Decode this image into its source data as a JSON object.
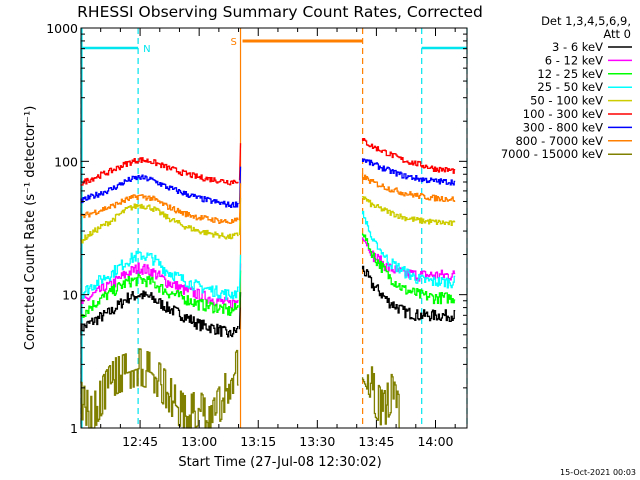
{
  "colors": {
    "background": "#ffffff",
    "axis": "#000000",
    "cyan_marker": "#00e5ee",
    "orange_marker": "#ff7f00"
  },
  "chart_data": {
    "type": "line",
    "title": "RHESSI Observing Summary Count Rates, Corrected",
    "xlabel": "Start Time (27-Jul-08 12:30:02)",
    "ylabel": "Corrected Count Rate (s⁻¹ detector⁻¹)",
    "ylog": true,
    "ylim": [
      1,
      1000
    ],
    "xlim_minutes": [
      0,
      98
    ],
    "x_ticks": [
      {
        "minute": 15,
        "label": "12:45"
      },
      {
        "minute": 30,
        "label": "13:00"
      },
      {
        "minute": 45,
        "label": "13:15"
      },
      {
        "minute": 60,
        "label": "13:30"
      },
      {
        "minute": 75,
        "label": "13:45"
      },
      {
        "minute": 90,
        "label": "14:00"
      }
    ],
    "y_ticks": [
      {
        "value": 1,
        "label": "1"
      },
      {
        "value": 10,
        "label": "10"
      },
      {
        "value": 100,
        "label": "100"
      },
      {
        "value": 1000,
        "label": "1000"
      }
    ],
    "legend": {
      "position": "right",
      "header_line1": "Det 1,3,4,5,6,9,",
      "header_line2": "Att 0",
      "entries": [
        {
          "label": "3 - 6 keV",
          "color": "#000000"
        },
        {
          "label": "6 - 12 keV",
          "color": "#ff00ff"
        },
        {
          "label": "12 - 25 keV",
          "color": "#00ff00"
        },
        {
          "label": "25 - 50 keV",
          "color": "#00ffff"
        },
        {
          "label": "50 - 100 keV",
          "color": "#cccc00"
        },
        {
          "label": "100 - 300 keV",
          "color": "#ff0000"
        },
        {
          "label": "300 - 800 keV",
          "color": "#0000ff"
        },
        {
          "label": "800 - 7000 keV",
          "color": "#ff7f00"
        },
        {
          "label": "7000 - 15000 keV",
          "color": "#808000"
        }
      ]
    },
    "annotations": {
      "night_label": "N",
      "saa_label": "S",
      "night_intervals_minutes": [
        [
          0,
          14.5
        ],
        [
          86.5,
          98
        ]
      ],
      "saa_interval_minutes": [
        40.5,
        71.5
      ],
      "data_gap_minutes": [
        40.5,
        71.5
      ]
    },
    "series": [
      {
        "color": "#000000",
        "before_gap": [
          [
            0,
            5.5
          ],
          [
            8,
            7.5
          ],
          [
            12,
            9.5
          ],
          [
            15,
            10
          ],
          [
            18,
            9.5
          ],
          [
            22,
            8
          ],
          [
            26,
            7
          ],
          [
            30,
            6
          ],
          [
            35,
            5.5
          ],
          [
            38,
            5
          ],
          [
            40,
            5.5
          ]
        ],
        "after_gap": [
          [
            71.5,
            16
          ],
          [
            74,
            12
          ],
          [
            78,
            9
          ],
          [
            82,
            7.5
          ],
          [
            86,
            7
          ],
          [
            90,
            7
          ],
          [
            95,
            7
          ]
        ]
      },
      {
        "color": "#ff00ff",
        "before_gap": [
          [
            0,
            8.5
          ],
          [
            8,
            12
          ],
          [
            12,
            14.5
          ],
          [
            15,
            16
          ],
          [
            18,
            15
          ],
          [
            22,
            12.5
          ],
          [
            26,
            11
          ],
          [
            30,
            10
          ],
          [
            35,
            9
          ],
          [
            38,
            8.5
          ],
          [
            40,
            9
          ]
        ],
        "after_gap": [
          [
            71.5,
            28
          ],
          [
            74,
            20
          ],
          [
            78,
            16
          ],
          [
            82,
            14.5
          ],
          [
            86,
            14
          ],
          [
            90,
            14
          ],
          [
            95,
            14
          ]
        ]
      },
      {
        "color": "#00ff00",
        "before_gap": [
          [
            0,
            7
          ],
          [
            8,
            10.5
          ],
          [
            12,
            12.5
          ],
          [
            15,
            13
          ],
          [
            18,
            12.5
          ],
          [
            22,
            10.5
          ],
          [
            26,
            9.5
          ],
          [
            30,
            8.5
          ],
          [
            35,
            8
          ],
          [
            38,
            7.5
          ],
          [
            40,
            8
          ]
        ],
        "after_gap": [
          [
            71.5,
            30
          ],
          [
            74,
            20
          ],
          [
            78,
            14
          ],
          [
            82,
            11
          ],
          [
            86,
            10
          ],
          [
            90,
            9.5
          ],
          [
            95,
            9.5
          ]
        ]
      },
      {
        "color": "#00ffff",
        "before_gap": [
          [
            0,
            10
          ],
          [
            8,
            14.5
          ],
          [
            12,
            18
          ],
          [
            15,
            20
          ],
          [
            18,
            19
          ],
          [
            22,
            15
          ],
          [
            26,
            13
          ],
          [
            30,
            11.5
          ],
          [
            35,
            10.5
          ],
          [
            38,
            10
          ],
          [
            40,
            10.5
          ]
        ],
        "after_gap": [
          [
            71.5,
            42
          ],
          [
            74,
            26
          ],
          [
            78,
            18
          ],
          [
            82,
            15
          ],
          [
            86,
            13
          ],
          [
            90,
            12.5
          ],
          [
            95,
            12.5
          ]
        ]
      },
      {
        "color": "#cccc00",
        "before_gap": [
          [
            0,
            25
          ],
          [
            8,
            36
          ],
          [
            12,
            44
          ],
          [
            15,
            47
          ],
          [
            18,
            45
          ],
          [
            22,
            38
          ],
          [
            26,
            33
          ],
          [
            30,
            30
          ],
          [
            35,
            28
          ],
          [
            38,
            27
          ],
          [
            40,
            28
          ]
        ],
        "after_gap": [
          [
            71.5,
            55
          ],
          [
            74,
            47
          ],
          [
            78,
            42
          ],
          [
            82,
            38
          ],
          [
            86,
            36
          ],
          [
            90,
            35
          ],
          [
            95,
            34
          ]
        ]
      },
      {
        "color": "#ff0000",
        "before_gap": [
          [
            0,
            68
          ],
          [
            8,
            85
          ],
          [
            12,
            97
          ],
          [
            15,
            103
          ],
          [
            18,
            100
          ],
          [
            22,
            90
          ],
          [
            26,
            82
          ],
          [
            30,
            76
          ],
          [
            35,
            72
          ],
          [
            38,
            70
          ],
          [
            40,
            72
          ]
        ],
        "after_gap": [
          [
            71.5,
            145
          ],
          [
            74,
            130
          ],
          [
            78,
            115
          ],
          [
            82,
            102
          ],
          [
            86,
            95
          ],
          [
            90,
            88
          ],
          [
            95,
            85
          ]
        ]
      },
      {
        "color": "#0000ff",
        "before_gap": [
          [
            0,
            50
          ],
          [
            8,
            62
          ],
          [
            12,
            72
          ],
          [
            15,
            76
          ],
          [
            18,
            73
          ],
          [
            22,
            64
          ],
          [
            26,
            58
          ],
          [
            30,
            53
          ],
          [
            35,
            49
          ],
          [
            38,
            47
          ],
          [
            40,
            48
          ]
        ],
        "after_gap": [
          [
            71.5,
            105
          ],
          [
            74,
            96
          ],
          [
            78,
            86
          ],
          [
            82,
            78
          ],
          [
            86,
            74
          ],
          [
            90,
            71
          ],
          [
            95,
            70
          ]
        ]
      },
      {
        "color": "#ff7f00",
        "before_gap": [
          [
            0,
            38
          ],
          [
            8,
            46
          ],
          [
            12,
            52
          ],
          [
            15,
            55
          ],
          [
            18,
            53
          ],
          [
            22,
            46
          ],
          [
            26,
            41
          ],
          [
            30,
            38
          ],
          [
            35,
            36
          ],
          [
            38,
            35
          ],
          [
            40,
            36
          ]
        ],
        "after_gap": [
          [
            71.5,
            78
          ],
          [
            74,
            70
          ],
          [
            78,
            63
          ],
          [
            82,
            58
          ],
          [
            86,
            55
          ],
          [
            90,
            53
          ],
          [
            95,
            52
          ]
        ]
      },
      {
        "color": "#808000",
        "before_gap": [
          [
            0,
            1.6
          ],
          [
            3,
            1.2
          ],
          [
            6,
            1.8
          ],
          [
            9,
            2.4
          ],
          [
            12,
            2.6
          ],
          [
            15,
            2.8
          ],
          [
            18,
            2.6
          ],
          [
            20,
            2.2
          ],
          [
            24,
            1.5
          ],
          [
            27,
            1.2
          ],
          [
            30,
            1.4
          ],
          [
            33,
            1.0
          ],
          [
            36,
            1.6
          ],
          [
            38,
            2.2
          ],
          [
            40,
            2.8
          ]
        ],
        "after_gap": [
          [
            71.5,
            3.2
          ],
          [
            73,
            2.5
          ],
          [
            75,
            1.6
          ],
          [
            77,
            1.3
          ],
          [
            79,
            1.8
          ],
          [
            81,
            1.2
          ]
        ]
      }
    ]
  },
  "footer_timestamp": "15-Oct-2021 00:03"
}
